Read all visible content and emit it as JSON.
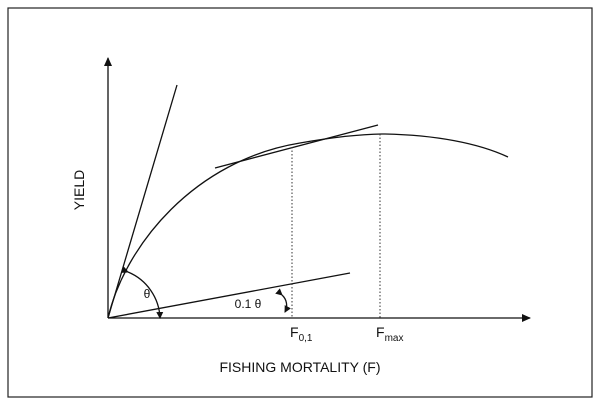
{
  "axes": {
    "y_label": "YIELD",
    "x_label": "FISHING MORTALITY (F)"
  },
  "angles": {
    "theta": "θ",
    "tenth_theta": "0.1 θ"
  },
  "points": [
    {
      "main": "F",
      "sub": "0,1"
    },
    {
      "main": "F",
      "sub": "max"
    }
  ]
}
